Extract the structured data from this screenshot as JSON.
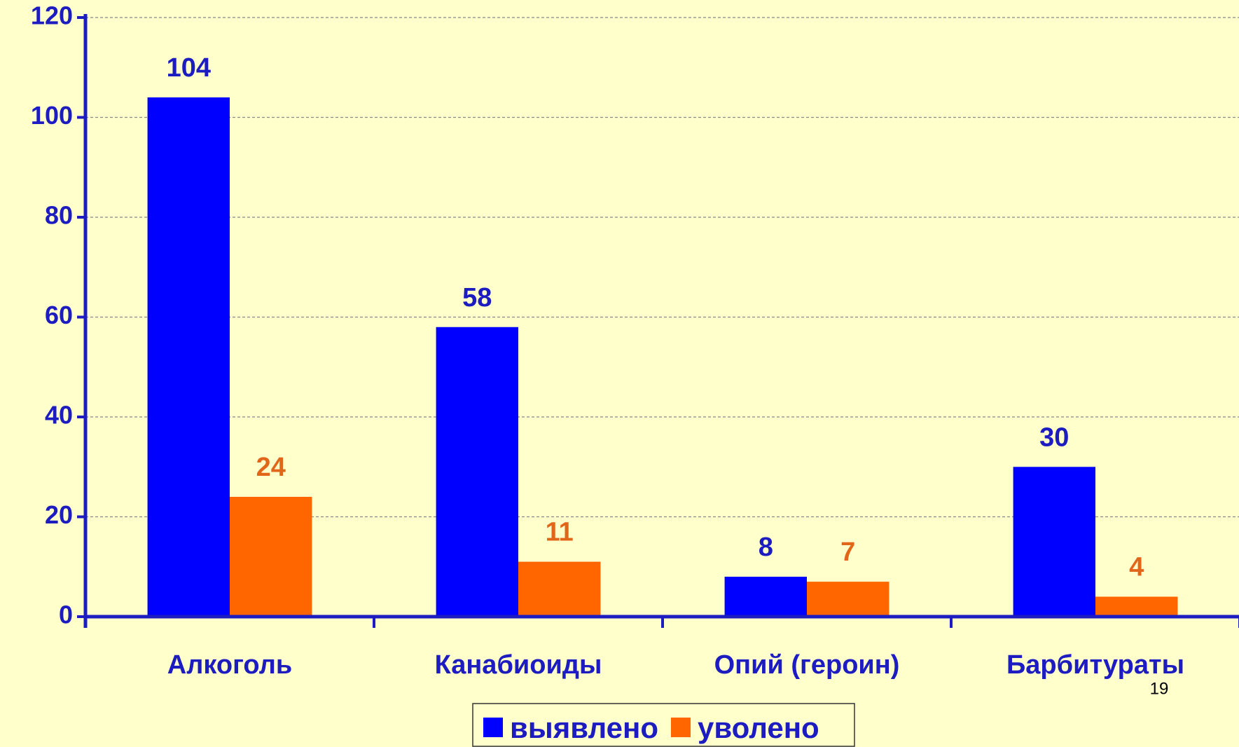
{
  "chart_data": {
    "type": "bar",
    "categories": [
      "Алкоголь",
      "Канабиоиды",
      "Опий (героин)",
      "Барбитураты"
    ],
    "series": [
      {
        "name": "выявлено",
        "color": "#0000ff",
        "label_color": "#1c1cc0",
        "values": [
          104,
          58,
          8,
          30
        ]
      },
      {
        "name": "уволено",
        "color": "#ff6600",
        "label_color": "#e2661a",
        "values": [
          24,
          11,
          7,
          4
        ]
      }
    ],
    "ylim": [
      0,
      120
    ],
    "yticks": [
      0,
      20,
      40,
      60,
      80,
      100,
      120
    ],
    "grid": true,
    "legend": "bottom",
    "page_number": "19"
  }
}
